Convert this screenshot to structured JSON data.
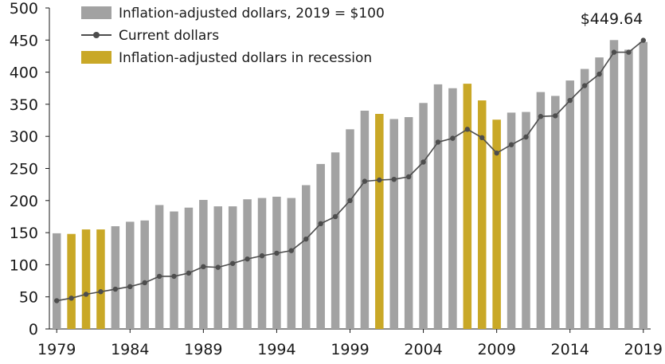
{
  "chart_data": {
    "type": "bar",
    "ylim": [
      0,
      500
    ],
    "yticks": [
      0,
      50,
      100,
      150,
      200,
      250,
      300,
      350,
      400,
      450,
      500
    ],
    "xticks": [
      "1979",
      "1984",
      "1989",
      "1994",
      "1999",
      "2004",
      "2009",
      "2014",
      "2019"
    ],
    "categories": [
      "1979",
      "1980",
      "1981",
      "1982",
      "1983",
      "1984",
      "1985",
      "1986",
      "1987",
      "1988",
      "1989",
      "1990",
      "1991",
      "1992",
      "1993",
      "1994",
      "1995",
      "1996",
      "1997",
      "1998",
      "1999",
      "2000",
      "2001",
      "2002",
      "2003",
      "2004",
      "2005",
      "2006",
      "2007",
      "2008",
      "2009",
      "2010",
      "2011",
      "2012",
      "2013",
      "2014",
      "2015",
      "2016",
      "2017",
      "2018",
      "2019"
    ],
    "legend": [
      "Inflation-adjusted dollars, 2019 = $100",
      "Current dollars",
      "Inflation-adjusted dollars in recession"
    ],
    "legend_position": "top-left",
    "series": [
      {
        "name": "Inflation-adjusted dollars, 2019 = $100",
        "kind": "bar",
        "color": "#a2a2a2",
        "recession_color": "#c9a827",
        "recession_years": [
          "1980",
          "1981",
          "1982",
          "2001",
          "2007",
          "2008",
          "2009"
        ],
        "values": [
          149,
          148,
          155,
          155,
          160,
          167,
          169,
          193,
          183,
          189,
          201,
          191,
          191,
          202,
          204,
          206,
          204,
          224,
          257,
          275,
          311,
          340,
          335,
          327,
          330,
          352,
          381,
          375,
          382,
          356,
          326,
          337,
          338,
          369,
          363,
          387,
          405,
          423,
          450,
          435,
          447
        ]
      },
      {
        "name": "Current dollars",
        "kind": "line",
        "color": "#4d4d4d",
        "values": [
          44,
          48,
          54,
          58,
          62,
          66,
          72,
          82,
          82,
          87,
          97,
          96,
          102,
          109,
          114,
          118,
          122,
          140,
          164,
          175,
          200,
          230,
          232,
          233,
          237,
          260,
          291,
          297,
          311,
          298,
          274,
          287,
          299,
          331,
          332,
          356,
          379,
          397,
          431,
          431,
          449.64
        ]
      }
    ],
    "annotations": [
      {
        "text": "$449.64",
        "x": "2019",
        "y": 449.64
      }
    ]
  }
}
